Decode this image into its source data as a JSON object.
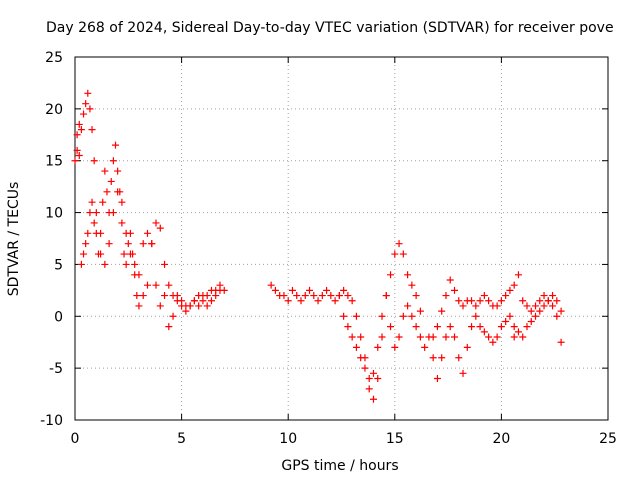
{
  "chart_data": {
    "type": "scatter",
    "title": "Day 268 of 2024, Sidereal Day-to-day VTEC variation (SDTVAR) for receiver pove",
    "xlabel": "GPS time / hours",
    "ylabel": "SDTVAR / TECUs",
    "xlim": [
      0,
      25
    ],
    "ylim": [
      -10,
      25
    ],
    "xticks": [
      "0",
      "5",
      "10",
      "15",
      "20",
      "25"
    ],
    "yticks": [
      "-10",
      "-5",
      "0",
      "5",
      "10",
      "15",
      "20",
      "25"
    ],
    "grid": true,
    "marker": "plus",
    "series": [
      {
        "name": "SDTVAR",
        "color": "#ff0000",
        "x": [
          0.0,
          0.1,
          0.2,
          0.3,
          0.4,
          0.5,
          0.6,
          0.7,
          0.8,
          0.9,
          1.0,
          1.1,
          1.2,
          1.3,
          1.4,
          1.5,
          1.6,
          1.7,
          1.8,
          1.9,
          2.0,
          2.1,
          2.2,
          2.3,
          2.4,
          2.5,
          2.6,
          2.7,
          2.8,
          2.9,
          3.0,
          3.2,
          3.4,
          3.6,
          3.8,
          4.0,
          4.2,
          4.4,
          4.6,
          4.8,
          5.0,
          5.2,
          5.4,
          5.6,
          5.8,
          6.0,
          6.2,
          6.4,
          6.6,
          6.8,
          7.0,
          0.1,
          0.2,
          0.3,
          0.4,
          0.5,
          0.6,
          0.7,
          0.8,
          0.9,
          1.0,
          1.2,
          1.4,
          1.6,
          1.8,
          2.0,
          2.2,
          2.4,
          2.6,
          2.8,
          3.0,
          3.2,
          3.4,
          3.6,
          3.8,
          4.0,
          4.2,
          4.4,
          4.6,
          4.8,
          5.0,
          5.2,
          5.4,
          5.6,
          5.8,
          6.0,
          6.2,
          6.4,
          6.6,
          6.8,
          9.2,
          9.4,
          9.6,
          9.8,
          10.0,
          10.2,
          10.4,
          10.6,
          10.8,
          11.0,
          11.2,
          11.4,
          11.6,
          11.8,
          12.0,
          12.2,
          12.4,
          12.6,
          12.8,
          13.0,
          13.2,
          13.4,
          13.6,
          13.8,
          14.0,
          14.2,
          14.4,
          14.6,
          14.8,
          15.0,
          15.2,
          15.4,
          15.6,
          15.8,
          16.0,
          16.2,
          12.4,
          12.6,
          12.8,
          13.0,
          13.2,
          13.4,
          13.6,
          13.8,
          14.0,
          14.2,
          14.4,
          14.6,
          14.8,
          15.0,
          15.2,
          15.4,
          15.6,
          15.8,
          16.0,
          16.2,
          16.4,
          16.6,
          16.8,
          17.0,
          17.2,
          17.4,
          17.6,
          17.8,
          18.0,
          18.2,
          18.4,
          18.6,
          18.8,
          19.0,
          19.2,
          19.4,
          19.6,
          19.8,
          20.0,
          20.2,
          20.4,
          20.6,
          16.8,
          17.0,
          17.2,
          17.4,
          17.6,
          17.8,
          18.0,
          18.2,
          18.4,
          18.6,
          18.8,
          19.0,
          19.2,
          19.4,
          19.6,
          19.8,
          20.0,
          20.2,
          20.4,
          20.6,
          20.8,
          21.0,
          21.2,
          21.4,
          21.6,
          21.8,
          22.0,
          22.2,
          22.4,
          22.6,
          22.8,
          20.6,
          20.8,
          21.0,
          21.2,
          21.4,
          21.6,
          21.8,
          22.0,
          22.2,
          22.4,
          22.6,
          22.8
        ],
        "y": [
          15.0,
          17.5,
          18.5,
          18.0,
          19.5,
          20.5,
          21.5,
          20.0,
          18.0,
          15.0,
          10.0,
          6.0,
          8.0,
          11.0,
          14.0,
          12.0,
          10.0,
          13.0,
          15.0,
          16.5,
          14.0,
          12.0,
          9.0,
          6.0,
          5.0,
          7.0,
          8.0,
          6.0,
          4.0,
          2.0,
          1.0,
          2.0,
          3.0,
          7.0,
          9.0,
          8.5,
          5.0,
          3.0,
          2.0,
          1.5,
          1.0,
          0.5,
          1.0,
          1.5,
          2.0,
          2.0,
          2.0,
          2.5,
          2.5,
          3.0,
          2.5,
          16.0,
          15.5,
          5.0,
          6.0,
          7.0,
          8.0,
          10.0,
          11.0,
          9.0,
          8.0,
          6.0,
          5.0,
          7.0,
          10.0,
          12.0,
          11.0,
          8.0,
          6.0,
          5.0,
          4.0,
          7.0,
          8.0,
          7.0,
          3.0,
          1.0,
          2.0,
          -1.0,
          0.0,
          2.0,
          1.5,
          1.0,
          1.0,
          1.5,
          1.0,
          1.5,
          1.0,
          1.5,
          2.0,
          2.5,
          3.0,
          2.5,
          2.0,
          2.0,
          1.5,
          2.5,
          2.0,
          1.5,
          2.0,
          2.5,
          2.0,
          1.5,
          2.0,
          2.5,
          2.0,
          1.5,
          2.0,
          2.5,
          2.0,
          1.5,
          0.0,
          -2.0,
          -4.0,
          -6.0,
          -8.0,
          -6.0,
          -2.0,
          2.0,
          4.0,
          6.0,
          7.0,
          6.0,
          4.0,
          3.0,
          2.0,
          0.5,
          2.0,
          0.0,
          -1.0,
          -2.0,
          -3.0,
          -4.0,
          -5.0,
          -7.0,
          -5.5,
          -3.0,
          0.0,
          2.0,
          -1.0,
          -3.0,
          -2.0,
          0.0,
          1.0,
          0.0,
          -1.0,
          -2.0,
          -3.0,
          -2.0,
          -4.0,
          -6.0,
          -4.0,
          -2.0,
          -1.0,
          -2.0,
          -4.0,
          -5.5,
          -3.0,
          -1.0,
          0.0,
          -1.0,
          -1.5,
          -2.0,
          -2.5,
          -2.0,
          -1.0,
          -0.5,
          0.0,
          -1.0,
          -2.0,
          -1.0,
          0.5,
          2.0,
          3.5,
          2.5,
          1.5,
          1.0,
          1.5,
          1.5,
          1.0,
          1.5,
          2.0,
          1.5,
          1.0,
          1.0,
          1.5,
          2.0,
          2.5,
          3.0,
          4.0,
          1.5,
          1.0,
          0.5,
          1.0,
          1.5,
          2.0,
          1.5,
          1.0,
          0.0,
          -2.5,
          -2.0,
          -1.5,
          -2.0,
          -1.0,
          -0.5,
          0.0,
          0.5,
          1.0,
          1.5,
          2.0,
          1.5,
          0.5
        ]
      }
    ]
  }
}
